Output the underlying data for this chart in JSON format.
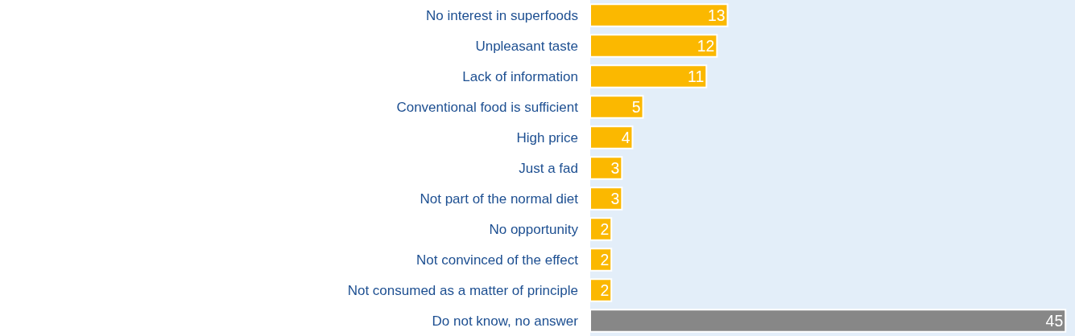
{
  "chart_data": {
    "type": "bar",
    "orientation": "horizontal",
    "categories": [
      "No interest in superfoods",
      "Unpleasant taste",
      "Lack of information",
      "Conventional food is sufficient",
      "High price",
      "Just a fad",
      "Not part of the normal diet",
      "No opportunity",
      "Not convinced of the effect",
      "Not consumed as a matter of principle",
      "Do not know, no answer"
    ],
    "values": [
      13,
      12,
      11,
      5,
      4,
      3,
      3,
      2,
      2,
      2,
      45
    ],
    "colors": [
      "#fbb800",
      "#fbb800",
      "#fbb800",
      "#fbb800",
      "#fbb800",
      "#fbb800",
      "#fbb800",
      "#fbb800",
      "#fbb800",
      "#fbb800",
      "#878787"
    ],
    "data_labels": true,
    "tick_labels": "y"
  }
}
